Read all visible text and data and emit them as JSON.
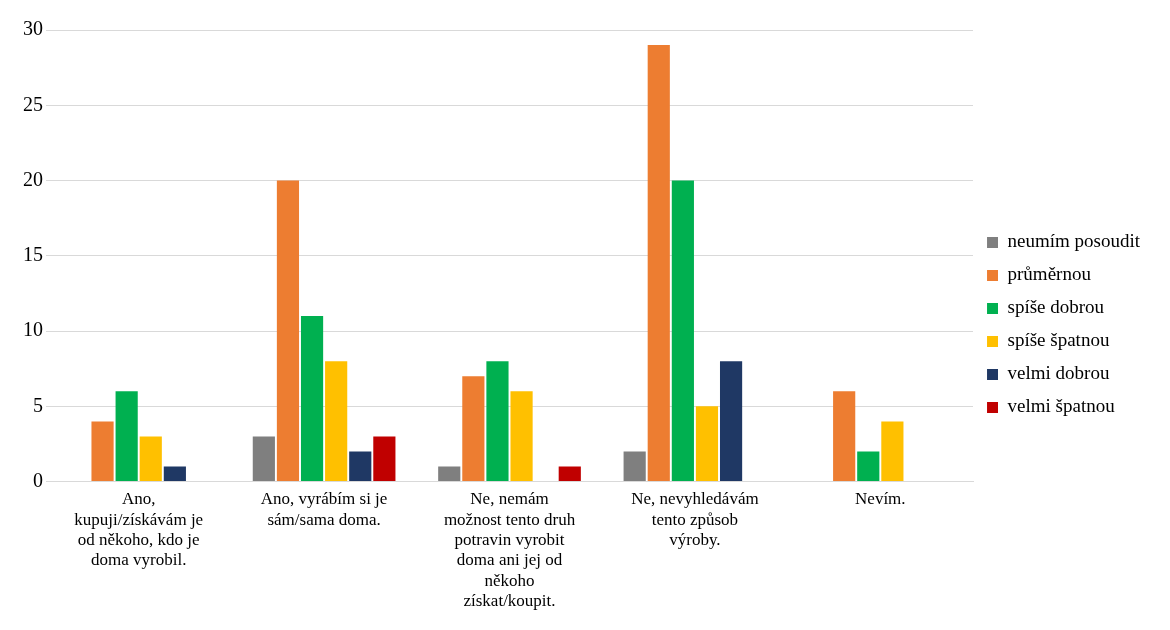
{
  "chart_data": {
    "type": "bar",
    "categories": [
      "Ano, kupuji/získávám je od někoho, kdo je doma vyrobil.",
      "Ano, vyrábím si je sám/sama doma.",
      "Ne, nemám možnost tento druh potravin vyrobit doma ani jej od někoho získat/koupit.",
      "Ne, nevyhledávám tento způsob výroby.",
      "Nevím."
    ],
    "series": [
      {
        "name": "neumím posoudit",
        "color": "#7f7f7f",
        "values": [
          null,
          3,
          1,
          2,
          null
        ]
      },
      {
        "name": "průměrnou",
        "color": "#ed7d31",
        "values": [
          4,
          20,
          7,
          29,
          6
        ]
      },
      {
        "name": "spíše dobrou",
        "color": "#00b050",
        "values": [
          6,
          11,
          8,
          20,
          2
        ]
      },
      {
        "name": "spíše špatnou",
        "color": "#ffc000",
        "values": [
          3,
          8,
          6,
          5,
          4
        ]
      },
      {
        "name": "velmi dobrou",
        "color": "#1f3864",
        "values": [
          1,
          2,
          null,
          8,
          null
        ]
      },
      {
        "name": "velmi špatnou",
        "color": "#c00000",
        "values": [
          null,
          3,
          1,
          null,
          null
        ]
      }
    ],
    "ylim": [
      0,
      30
    ],
    "yticks": [
      0,
      5,
      10,
      15,
      20,
      25,
      30
    ],
    "grid": "y",
    "legend": "right"
  }
}
